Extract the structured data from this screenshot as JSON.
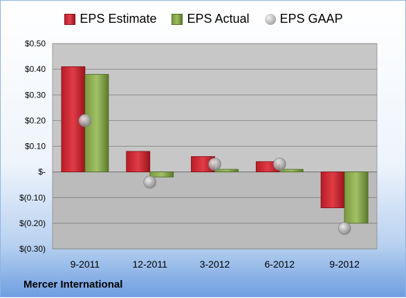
{
  "company": "Mercer International",
  "legend": {
    "estimate": "EPS Estimate",
    "actual": "EPS Actual",
    "gaap": "EPS GAAP"
  },
  "colors": {
    "estimate": "#c8202a",
    "actual": "#8aaa4e",
    "gaap": "#a8a8a8",
    "plot_bg": "#c7c7c7"
  },
  "chart_data": {
    "type": "bar",
    "categories": [
      "9-2011",
      "12-2011",
      "3-2012",
      "6-2012",
      "9-2012"
    ],
    "series": [
      {
        "name": "EPS Estimate",
        "values": [
          0.41,
          0.08,
          0.06,
          0.04,
          -0.14
        ]
      },
      {
        "name": "EPS Actual",
        "values": [
          0.38,
          -0.02,
          0.01,
          0.01,
          -0.2
        ]
      },
      {
        "name": "EPS GAAP",
        "values": [
          0.2,
          -0.04,
          0.03,
          0.03,
          -0.22
        ]
      }
    ],
    "ylim": [
      -0.3,
      0.5
    ],
    "yticks": [
      0.5,
      0.4,
      0.3,
      0.2,
      0.1,
      0,
      -0.1,
      -0.2,
      -0.3
    ],
    "ytick_labels": [
      "$0.50",
      "$0.40",
      "$0.30",
      "$0.20",
      "$0.10",
      "$-",
      "$(0.10)",
      "$(0.20)",
      "$(0.30)"
    ],
    "grid": true,
    "legend_position": "top"
  }
}
